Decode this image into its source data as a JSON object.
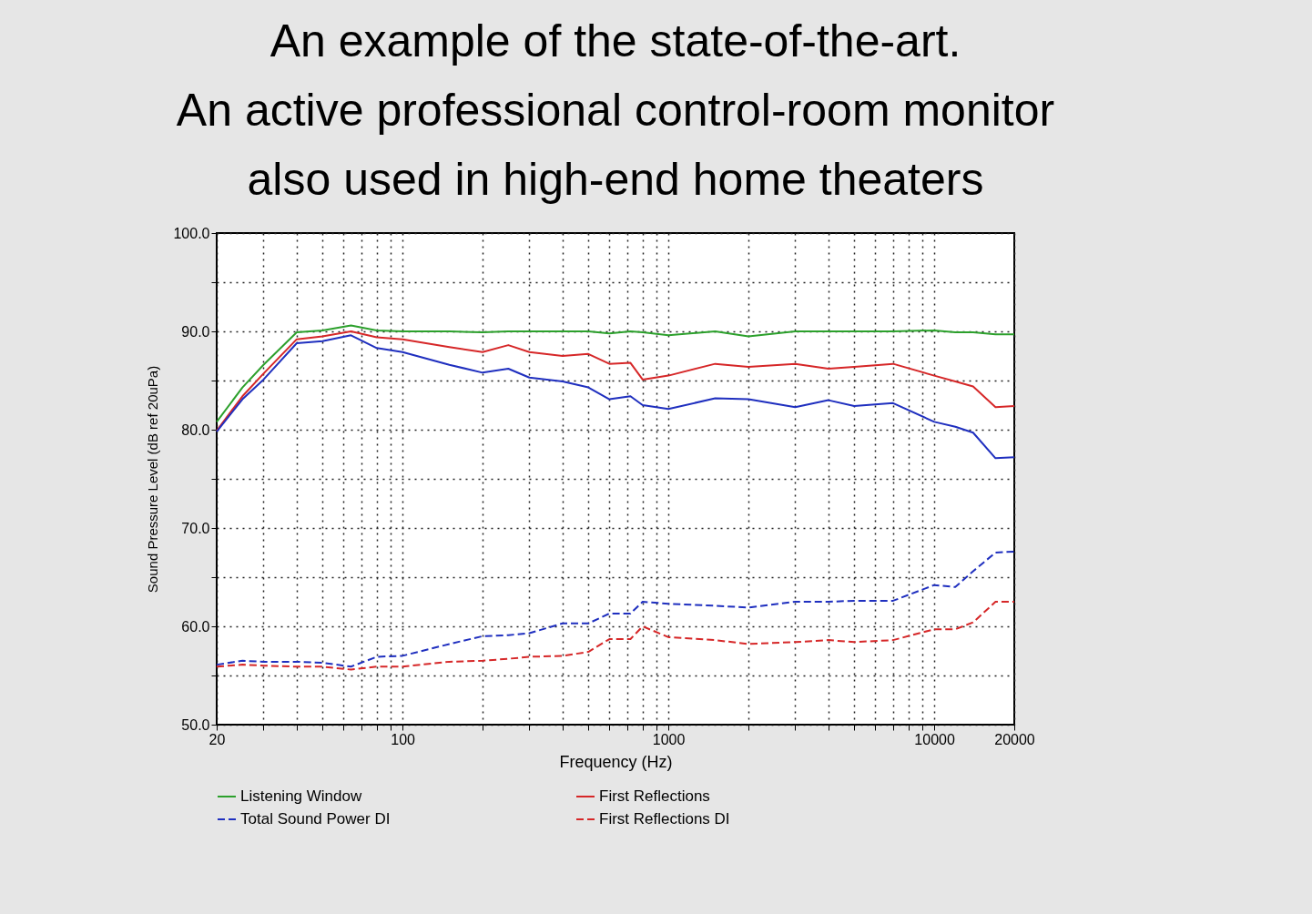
{
  "chart_data": {
    "type": "line",
    "title": "An example of the state-of-the-art.\nAn active professional control-room monitor\nalso used in high-end home theaters",
    "xlabel": "Frequency (Hz)",
    "ylabel": "Sound Pressure Level (dB ref 20uPa)",
    "log": "x",
    "grid": true,
    "legend": "bottom",
    "xlim": [
      20,
      20000
    ],
    "ylim": [
      50,
      100
    ],
    "xticks": [
      20,
      {
        "value": 30,
        "label": null
      },
      {
        "value": 40,
        "label": null
      },
      {
        "value": 50,
        "label": null
      },
      {
        "value": 60,
        "label": null
      },
      {
        "value": 70,
        "label": null
      },
      {
        "value": 80,
        "label": null
      },
      {
        "value": 90,
        "label": null
      },
      100,
      {
        "value": 200,
        "label": null
      },
      {
        "value": 300,
        "label": null
      },
      {
        "value": 400,
        "label": null
      },
      {
        "value": 500,
        "label": null
      },
      {
        "value": 600,
        "label": null
      },
      {
        "value": 700,
        "label": null
      },
      {
        "value": 800,
        "label": null
      },
      {
        "value": 900,
        "label": null
      },
      1000,
      {
        "value": 2000,
        "label": null
      },
      {
        "value": 3000,
        "label": null
      },
      {
        "value": 4000,
        "label": null
      },
      {
        "value": 5000,
        "label": null
      },
      {
        "value": 6000,
        "label": null
      },
      {
        "value": 7000,
        "label": null
      },
      {
        "value": 8000,
        "label": null
      },
      {
        "value": 9000,
        "label": null
      },
      10000,
      20000
    ],
    "yticks": [
      {
        "value": 50,
        "label": "50.0"
      },
      {
        "value": 55,
        "label": null
      },
      {
        "value": 60,
        "label": "60.0"
      },
      {
        "value": 65,
        "label": null
      },
      {
        "value": 70,
        "label": "70.0"
      },
      {
        "value": 75,
        "label": null
      },
      {
        "value": 80,
        "label": "80.0"
      },
      {
        "value": 85,
        "label": null
      },
      {
        "value": 90,
        "label": "90.0"
      },
      {
        "value": 95,
        "label": null
      },
      {
        "value": 100,
        "label": "100.0"
      }
    ],
    "x": [
      20,
      25,
      30,
      40,
      50,
      64,
      80,
      100,
      150,
      200,
      250,
      300,
      400,
      500,
      600,
      720,
      800,
      1000,
      1500,
      2000,
      3000,
      4000,
      5000,
      7000,
      10000,
      12000,
      14000,
      17000,
      20000
    ],
    "series": [
      {
        "name": "Listening Window",
        "color": "#2ca02c",
        "line_style": "solid",
        "values": [
          80.8,
          84.3,
          86.6,
          89.9,
          90.1,
          90.6,
          90.1,
          90.0,
          90.0,
          89.9,
          90.0,
          90.0,
          90.0,
          90.0,
          89.8,
          90.0,
          89.9,
          89.6,
          90.0,
          89.5,
          90.0,
          90.0,
          90.0,
          90.0,
          90.1,
          89.9,
          89.9,
          89.7,
          89.7
        ]
      },
      {
        "name": "First Reflections",
        "color": "#d62728",
        "line_style": "solid",
        "values": [
          79.9,
          83.4,
          85.7,
          89.2,
          89.5,
          90.0,
          89.4,
          89.2,
          88.4,
          87.9,
          88.6,
          87.9,
          87.5,
          87.7,
          86.7,
          86.8,
          85.1,
          85.5,
          86.7,
          86.4,
          86.7,
          86.2,
          86.4,
          86.7,
          85.5,
          84.9,
          84.4,
          82.3,
          82.4
        ]
      },
      {
        "color": "#1f2fbf",
        "line_style": "solid",
        "values": [
          79.8,
          83.1,
          85.1,
          88.8,
          89.0,
          89.6,
          88.3,
          87.9,
          86.6,
          85.8,
          86.2,
          85.3,
          84.9,
          84.3,
          83.1,
          83.4,
          82.5,
          82.1,
          83.2,
          83.1,
          82.3,
          83.0,
          82.4,
          82.7,
          80.8,
          80.3,
          79.7,
          77.1,
          77.2
        ]
      },
      {
        "name": "Total Sound Power DI",
        "color": "#1f2fbf",
        "line_style": "dashed",
        "values": [
          56.1,
          56.5,
          56.4,
          56.4,
          56.3,
          55.9,
          56.9,
          57.0,
          58.2,
          59.0,
          59.1,
          59.3,
          60.3,
          60.3,
          61.3,
          61.3,
          62.5,
          62.3,
          62.1,
          61.9,
          62.5,
          62.5,
          62.6,
          62.6,
          64.2,
          64.0,
          65.6,
          67.5,
          67.6
        ]
      },
      {
        "name": "First Reflections DI",
        "color": "#d62728",
        "line_style": "dashed",
        "values": [
          55.9,
          56.1,
          56.0,
          55.9,
          55.9,
          55.6,
          55.9,
          55.9,
          56.4,
          56.5,
          56.7,
          56.9,
          57.0,
          57.4,
          58.7,
          58.7,
          60.0,
          58.9,
          58.6,
          58.2,
          58.4,
          58.6,
          58.4,
          58.6,
          59.7,
          59.7,
          60.4,
          62.5,
          62.5
        ]
      }
    ]
  }
}
